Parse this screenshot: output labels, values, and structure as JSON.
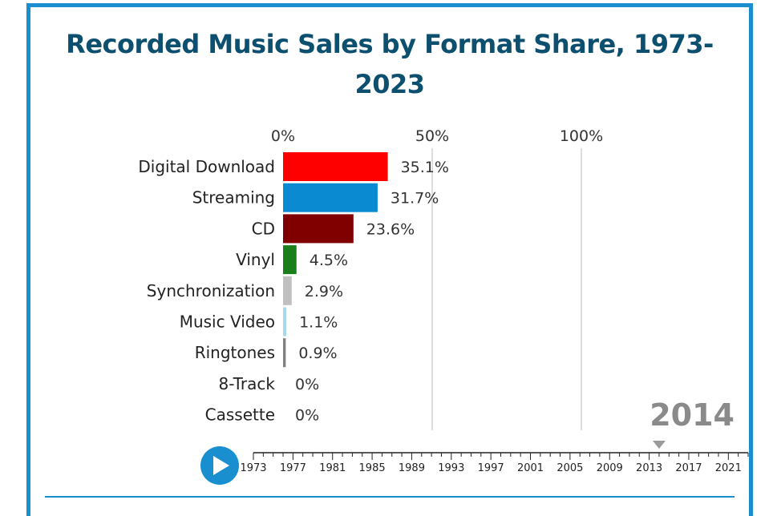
{
  "chart_data": {
    "type": "bar",
    "title": "Recorded Music Sales by Format Share, 1973-2023",
    "x_ticks": [
      "0%",
      "50%",
      "100%"
    ],
    "xlim": [
      0,
      100
    ],
    "categories": [
      "Digital Download",
      "Streaming",
      "CD",
      "Vinyl",
      "Synchronization",
      "Music Video",
      "Ringtones",
      "8-Track",
      "Cassette"
    ],
    "values": [
      35.1,
      31.7,
      23.6,
      4.5,
      2.9,
      1.1,
      0.9,
      0,
      0
    ],
    "value_labels": [
      "35.1%",
      "31.7%",
      "23.6%",
      "4.5%",
      "2.9%",
      "1.1%",
      "0.9%",
      "0%",
      "0%"
    ],
    "colors": [
      "#ff0000",
      "#0a8bd1",
      "#800000",
      "#1a7f1a",
      "#c0c0c0",
      "#a8d8f0",
      "#808080",
      "#cccccc",
      "#cccccc"
    ],
    "grid": true,
    "current_year": "2014"
  },
  "timeline": {
    "year_labels": [
      "1973",
      "1977",
      "1981",
      "1985",
      "1989",
      "1993",
      "1997",
      "2001",
      "2005",
      "2009",
      "2013",
      "2017",
      "2021"
    ],
    "start_year": 1973,
    "end_year": 2023,
    "current_year_value": 2014,
    "play_icon": "play-icon"
  },
  "colors": {
    "accent": "#1a8fd0",
    "title": "#0d4f6e"
  }
}
